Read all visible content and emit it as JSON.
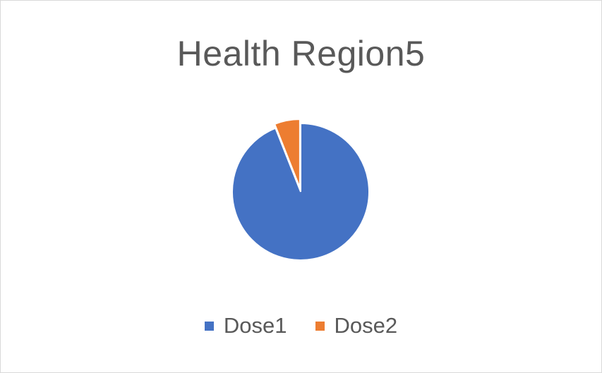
{
  "chart_data": {
    "type": "pie",
    "title": "Health Region5",
    "categories": [
      "Dose1",
      "Dose2"
    ],
    "values": [
      94,
      6
    ],
    "colors": [
      "#4472c4",
      "#ed7d31"
    ],
    "legend_position": "bottom"
  }
}
